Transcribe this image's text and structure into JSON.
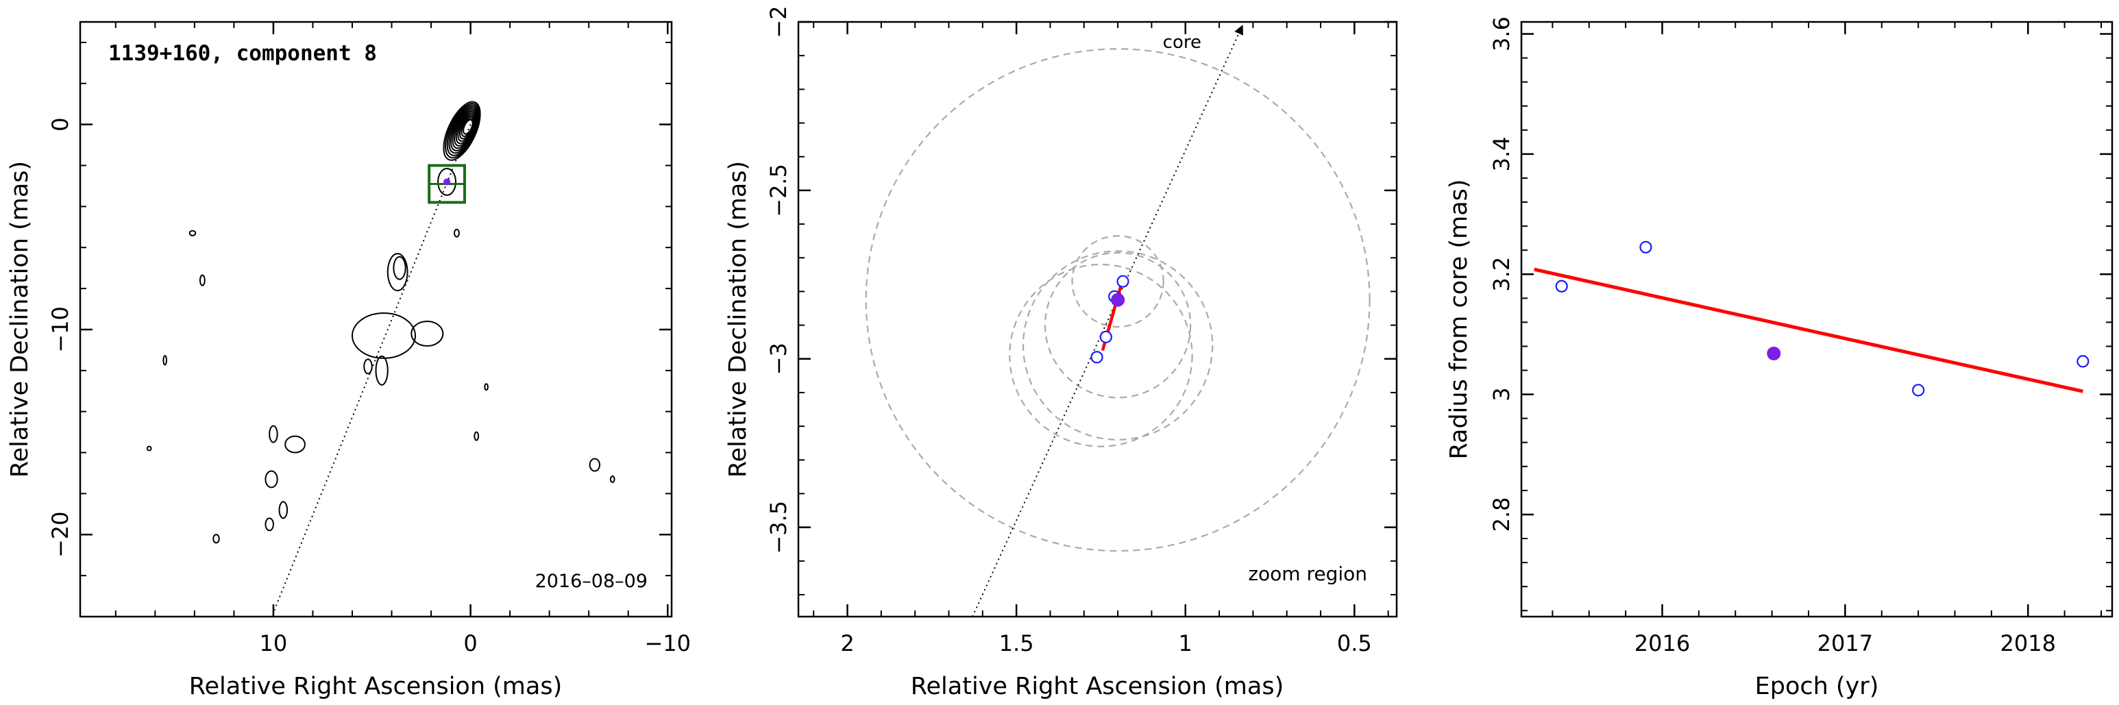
{
  "chart_data": [
    {
      "type": "contour",
      "title": "1139+160, component 8",
      "date_label": "2016–08–09",
      "xlabel": "Relative Right Ascension (mas)",
      "ylabel": "Relative Declination (mas)",
      "xlim": [
        19.8,
        -10.2
      ],
      "ylim": [
        -24,
        5
      ],
      "xticks": [
        {
          "v": 10,
          "label": "10"
        },
        {
          "v": 0,
          "label": "0"
        },
        {
          "v": -10,
          "label": "−10"
        }
      ],
      "yticks": [
        {
          "v": 0,
          "label": "0"
        },
        {
          "v": -10,
          "label": "−10"
        },
        {
          "v": -20,
          "label": "−20"
        }
      ],
      "jet_axis": [
        [
          0,
          0
        ],
        [
          10,
          -23.8
        ]
      ],
      "component_position": [
        1.2,
        -2.8
      ],
      "zoom_box": {
        "x": [
          0.3,
          2.1
        ],
        "y": [
          -3.8,
          -2.0
        ]
      },
      "contours": {
        "core_center": [
          0.1,
          -0.1
        ],
        "core_levels": 12,
        "features": [
          {
            "x": 1.2,
            "y": -2.8,
            "rx": 0.45,
            "ry": 0.65
          },
          {
            "x": 0.7,
            "y": -5.3,
            "rx": 0.12,
            "ry": 0.18
          },
          {
            "x": 3.7,
            "y": -7.2,
            "rx": 0.5,
            "ry": 0.9
          },
          {
            "x": 3.6,
            "y": -7.0,
            "rx": 0.3,
            "ry": 0.55
          },
          {
            "x": 4.4,
            "y": -10.3,
            "rx": 1.6,
            "ry": 1.1
          },
          {
            "x": 2.2,
            "y": -10.2,
            "rx": 0.8,
            "ry": 0.6
          },
          {
            "x": 5.2,
            "y": -11.8,
            "rx": 0.2,
            "ry": 0.35
          },
          {
            "x": 4.5,
            "y": -12.0,
            "rx": 0.3,
            "ry": 0.7
          },
          {
            "x": 14.1,
            "y": -5.3,
            "rx": 0.15,
            "ry": 0.12
          },
          {
            "x": 13.6,
            "y": -7.6,
            "rx": 0.12,
            "ry": 0.25
          },
          {
            "x": 15.5,
            "y": -11.5,
            "rx": 0.08,
            "ry": 0.22
          },
          {
            "x": 16.3,
            "y": -15.8,
            "rx": 0.1,
            "ry": 0.1
          },
          {
            "x": 10.0,
            "y": -15.1,
            "rx": 0.2,
            "ry": 0.4
          },
          {
            "x": 8.9,
            "y": -15.6,
            "rx": 0.5,
            "ry": 0.4
          },
          {
            "x": 10.1,
            "y": -17.3,
            "rx": 0.3,
            "ry": 0.4
          },
          {
            "x": 9.5,
            "y": -18.8,
            "rx": 0.2,
            "ry": 0.4
          },
          {
            "x": 10.2,
            "y": -19.5,
            "rx": 0.2,
            "ry": 0.3
          },
          {
            "x": 12.9,
            "y": -20.2,
            "rx": 0.15,
            "ry": 0.2
          },
          {
            "x": -0.8,
            "y": -12.8,
            "rx": 0.08,
            "ry": 0.15
          },
          {
            "x": -0.3,
            "y": -15.2,
            "rx": 0.1,
            "ry": 0.2
          },
          {
            "x": -6.3,
            "y": -16.6,
            "rx": 0.25,
            "ry": 0.3
          },
          {
            "x": -7.2,
            "y": -17.3,
            "rx": 0.1,
            "ry": 0.15
          }
        ]
      }
    },
    {
      "type": "scatter",
      "title": "",
      "corner_label": "zoom region",
      "arrow_label": "core",
      "xlabel": "Relative Right Ascension (mas)",
      "ylabel": "Relative Declination (mas)",
      "xlim": [
        2.145,
        0.375
      ],
      "ylim": [
        -3.765,
        -2.0
      ],
      "xticks": [
        {
          "v": 2,
          "label": "2"
        },
        {
          "v": 1.5,
          "label": "1.5"
        },
        {
          "v": 1,
          "label": "1"
        },
        {
          "v": 0.5,
          "label": "0.5"
        }
      ],
      "yticks": [
        {
          "v": -2,
          "label": "−2"
        },
        {
          "v": -2.5,
          "label": "−2.5"
        },
        {
          "v": -3,
          "label": "−3"
        },
        {
          "v": -3.5,
          "label": "−3.5"
        }
      ],
      "jet_axis": [
        [
          1.63,
          -3.765
        ],
        [
          0.84,
          -2.0
        ]
      ],
      "points": [
        {
          "x": 1.262,
          "y": -2.995,
          "filled": false
        },
        {
          "x": 1.235,
          "y": -2.935,
          "filled": false
        },
        {
          "x": 1.21,
          "y": -2.815,
          "filled": false
        },
        {
          "x": 1.185,
          "y": -2.77,
          "filled": false
        },
        {
          "x": 1.2,
          "y": -2.825,
          "filled": true
        }
      ],
      "circles": [
        {
          "x": 1.2,
          "y": -2.825,
          "r": 0.745
        },
        {
          "x": 1.2,
          "y": -2.77,
          "r": 0.135
        },
        {
          "x": 1.2,
          "y": -2.9,
          "r": 0.215
        },
        {
          "x": 1.2,
          "y": -2.96,
          "r": 0.28
        },
        {
          "x": 1.25,
          "y": -2.99,
          "r": 0.27
        }
      ],
      "fit_line": [
        [
          1.245,
          -2.975
        ],
        [
          1.19,
          -2.78
        ]
      ],
      "colors": {
        "points": "#1a1aff",
        "filled": "#7a1fe6",
        "fit": "#ff0000",
        "circles": "#aaaaaa"
      }
    },
    {
      "type": "scatter",
      "title": "",
      "xlabel": "Epoch (yr)",
      "ylabel": "Radius from core (mas)",
      "xlim": [
        2015.23,
        2018.46
      ],
      "ylim": [
        2.63,
        3.62
      ],
      "xticks": [
        {
          "v": 2016,
          "label": "2016"
        },
        {
          "v": 2017,
          "label": "2017"
        },
        {
          "v": 2018,
          "label": "2018"
        }
      ],
      "yticks": [
        {
          "v": 2.8,
          "label": "2.8"
        },
        {
          "v": 3,
          "label": "3"
        },
        {
          "v": 3.2,
          "label": "3.2"
        },
        {
          "v": 3.4,
          "label": "3.4"
        },
        {
          "v": 3.6,
          "label": "3.6"
        }
      ],
      "points": [
        {
          "x": 2015.45,
          "y": 3.18,
          "filled": false
        },
        {
          "x": 2015.91,
          "y": 3.245,
          "filled": false
        },
        {
          "x": 2016.61,
          "y": 3.068,
          "filled": true
        },
        {
          "x": 2017.4,
          "y": 3.007,
          "filled": false
        },
        {
          "x": 2018.3,
          "y": 3.055,
          "filled": false
        }
      ],
      "fit_line": [
        [
          2015.3,
          3.208
        ],
        [
          2018.3,
          3.005
        ]
      ],
      "colors": {
        "points": "#1a1aff",
        "filled": "#7a1fe6",
        "fit": "#ff0000"
      }
    }
  ]
}
